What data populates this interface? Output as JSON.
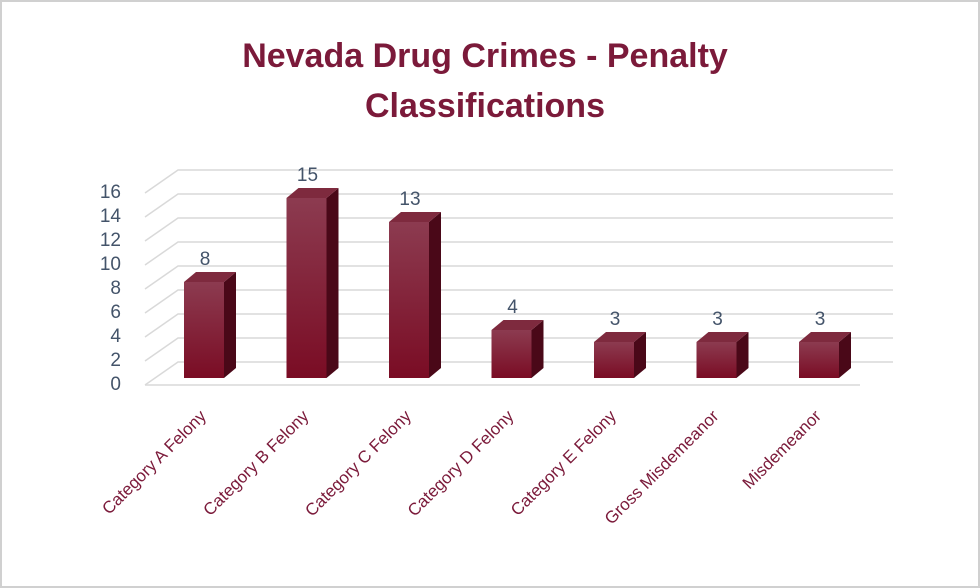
{
  "chart_data": {
    "type": "bar3d",
    "title": "Nevada Drug Crimes - Penalty Classifications",
    "categories": [
      "Category A Felony",
      "Category B Felony",
      "Category C Felony",
      "Category D Felony",
      "Category E Felony",
      "Gross Misdemeanor",
      "Misdemeanor"
    ],
    "values": [
      8,
      15,
      13,
      4,
      3,
      3,
      3
    ],
    "color": "#7b1028",
    "ylim": [
      0,
      16
    ],
    "yticks": [
      0,
      2,
      4,
      6,
      8,
      10,
      12,
      14,
      16
    ],
    "grid": true
  }
}
